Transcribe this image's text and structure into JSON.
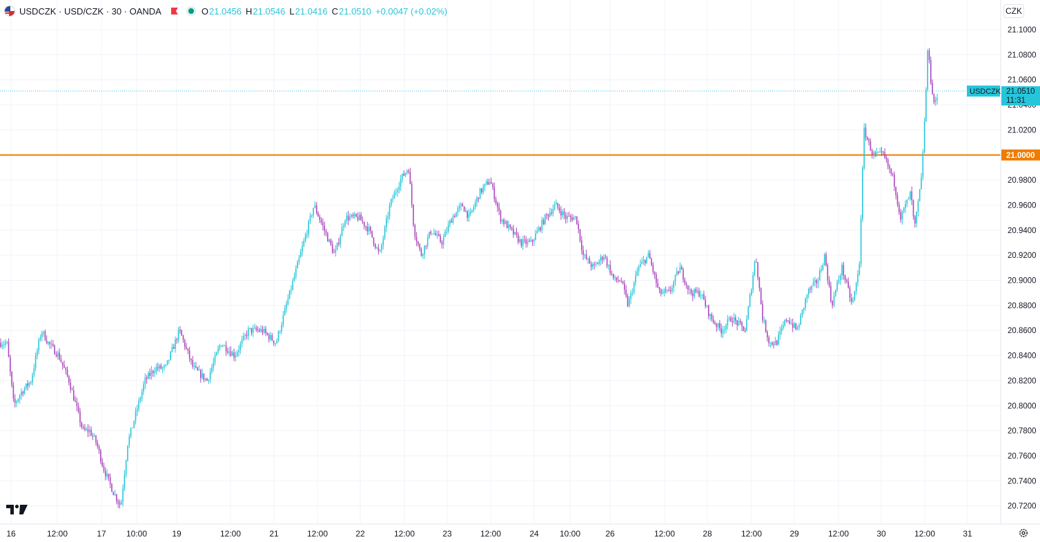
{
  "header": {
    "symbol": "USDCZK",
    "full": "USDCZK · USD/CZK · 30 · OANDA",
    "o_label": "O",
    "o_value": "21.0456",
    "h_label": "H",
    "h_value": "21.0546",
    "l_label": "L",
    "l_value": "21.0416",
    "c_label": "C",
    "c_value": "21.0510",
    "change": "+0.0047 (+0.02%)",
    "currency_button": "CZK"
  },
  "colors": {
    "up": "#26c6da",
    "down": "#ab47bc",
    "level_line": "#ef7c00",
    "price_tag": "#26c6da",
    "grid": "#f0f3fa",
    "text": "#131722"
  },
  "icons": [
    "usd-czk-flag-icon",
    "red-flag-icon",
    "market-open-dot-icon",
    "tradingview-logo-icon",
    "settings-gear-icon"
  ],
  "chart_data": {
    "type": "candlestick",
    "ylim": [
      20.7,
      21.12
    ],
    "y_ticks": [
      "21.1000",
      "21.0800",
      "21.0600",
      "21.0400",
      "21.0200",
      "21.0000",
      "20.9800",
      "20.9600",
      "20.9400",
      "20.9200",
      "20.9000",
      "20.8800",
      "20.8600",
      "20.8400",
      "20.8200",
      "20.8000",
      "20.7800",
      "20.7600",
      "20.7400",
      "20.7200"
    ],
    "x_ticks": [
      "16",
      "12:00",
      "17",
      "10:00",
      "19",
      "12:00",
      "21",
      "12:00",
      "22",
      "12:00",
      "23",
      "12:00",
      "24",
      "10:00",
      "26",
      "12:00",
      "28",
      "12:00",
      "29",
      "12:00",
      "30",
      "12:00",
      "31"
    ],
    "last_price": {
      "symbol": "USDCZK",
      "value": "21.0510",
      "countdown": "11:31",
      "y": 21.051
    },
    "level": {
      "value": "21.0000",
      "y": 21.0
    },
    "anchors": [
      [
        0,
        20.85
      ],
      [
        10,
        20.85
      ],
      [
        20,
        20.8
      ],
      [
        30,
        20.81
      ],
      [
        45,
        20.82
      ],
      [
        60,
        20.86
      ],
      [
        70,
        20.85
      ],
      [
        85,
        20.84
      ],
      [
        100,
        20.82
      ],
      [
        110,
        20.8
      ],
      [
        120,
        20.78
      ],
      [
        130,
        20.78
      ],
      [
        140,
        20.77
      ],
      [
        150,
        20.75
      ],
      [
        165,
        20.73
      ],
      [
        175,
        20.72
      ],
      [
        185,
        20.77
      ],
      [
        195,
        20.79
      ],
      [
        210,
        20.82
      ],
      [
        225,
        20.83
      ],
      [
        240,
        20.83
      ],
      [
        260,
        20.86
      ],
      [
        280,
        20.83
      ],
      [
        300,
        20.82
      ],
      [
        320,
        20.85
      ],
      [
        340,
        20.84
      ],
      [
        360,
        20.86
      ],
      [
        380,
        20.86
      ],
      [
        400,
        20.85
      ],
      [
        410,
        20.87
      ],
      [
        420,
        20.89
      ],
      [
        440,
        20.93
      ],
      [
        455,
        20.96
      ],
      [
        470,
        20.94
      ],
      [
        485,
        20.92
      ],
      [
        500,
        20.95
      ],
      [
        520,
        20.95
      ],
      [
        535,
        20.94
      ],
      [
        550,
        20.92
      ],
      [
        565,
        20.96
      ],
      [
        580,
        20.98
      ],
      [
        592,
        20.99
      ],
      [
        600,
        20.94
      ],
      [
        610,
        20.92
      ],
      [
        625,
        20.94
      ],
      [
        640,
        20.93
      ],
      [
        655,
        20.95
      ],
      [
        670,
        20.96
      ],
      [
        680,
        20.95
      ],
      [
        695,
        20.97
      ],
      [
        710,
        20.98
      ],
      [
        725,
        20.95
      ],
      [
        740,
        20.94
      ],
      [
        755,
        20.93
      ],
      [
        770,
        20.93
      ],
      [
        790,
        20.95
      ],
      [
        805,
        20.96
      ],
      [
        820,
        20.95
      ],
      [
        835,
        20.95
      ],
      [
        845,
        20.92
      ],
      [
        860,
        20.91
      ],
      [
        875,
        20.92
      ],
      [
        890,
        20.9
      ],
      [
        900,
        20.9
      ],
      [
        910,
        20.88
      ],
      [
        925,
        20.91
      ],
      [
        940,
        20.92
      ],
      [
        955,
        20.89
      ],
      [
        970,
        20.89
      ],
      [
        985,
        20.91
      ],
      [
        1000,
        20.89
      ],
      [
        1015,
        20.89
      ],
      [
        1030,
        20.87
      ],
      [
        1045,
        20.86
      ],
      [
        1060,
        20.87
      ],
      [
        1080,
        20.86
      ],
      [
        1095,
        20.92
      ],
      [
        1105,
        20.87
      ],
      [
        1115,
        20.85
      ],
      [
        1125,
        20.85
      ],
      [
        1140,
        20.87
      ],
      [
        1155,
        20.86
      ],
      [
        1170,
        20.89
      ],
      [
        1185,
        20.9
      ],
      [
        1195,
        20.92
      ],
      [
        1205,
        20.88
      ],
      [
        1220,
        20.91
      ],
      [
        1235,
        20.88
      ],
      [
        1245,
        20.91
      ],
      [
        1252,
        21.02
      ],
      [
        1265,
        21.0
      ],
      [
        1280,
        21.0
      ],
      [
        1295,
        20.98
      ],
      [
        1305,
        20.95
      ],
      [
        1320,
        20.97
      ],
      [
        1325,
        20.94
      ],
      [
        1335,
        20.98
      ],
      [
        1340,
        21.03
      ],
      [
        1345,
        21.09
      ],
      [
        1350,
        21.05
      ],
      [
        1355,
        21.04
      ],
      [
        1360,
        21.05
      ]
    ]
  }
}
